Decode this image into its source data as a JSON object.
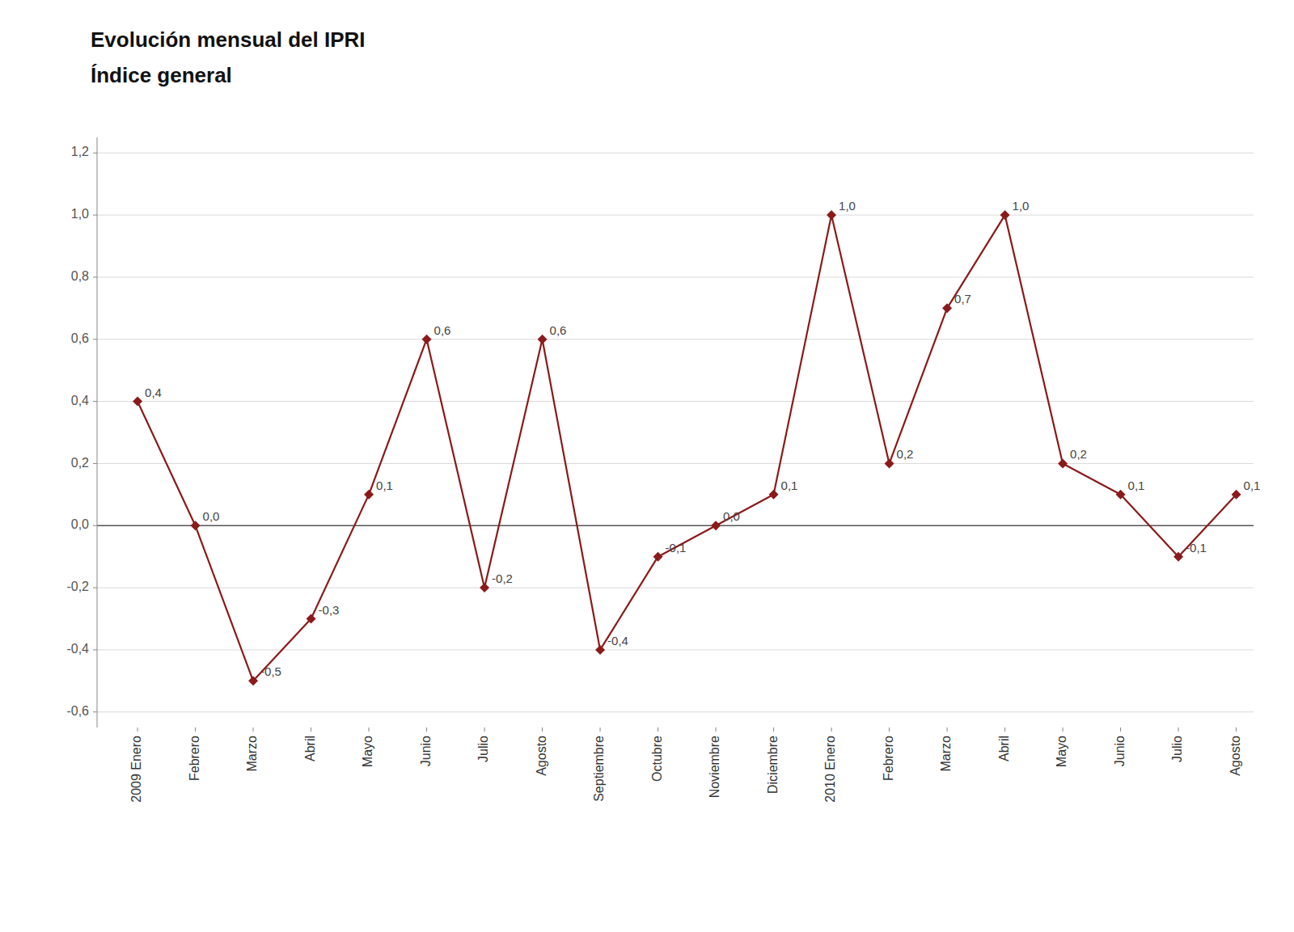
{
  "chart_data": {
    "type": "line",
    "title": "Evolución mensual del IPRI",
    "subtitle": "Índice general",
    "categories": [
      "2009 Enero",
      "Febrero",
      "Marzo",
      "Abril",
      "Mayo",
      "Junio",
      "Julio",
      "Agosto",
      "Septiembre",
      "Octubre",
      "Noviembre",
      "Diciembre",
      "2010 Enero",
      "Febrero",
      "Marzo",
      "Abril",
      "Mayo",
      "Junio",
      "Julio",
      "Agosto"
    ],
    "values": [
      0.4,
      0.0,
      -0.5,
      -0.3,
      0.1,
      0.6,
      -0.2,
      0.6,
      -0.4,
      -0.1,
      0.0,
      0.1,
      1.0,
      0.2,
      0.7,
      1.0,
      0.2,
      0.1,
      -0.1,
      0.1
    ],
    "value_labels": [
      "0,4",
      "0,0",
      "-0,5",
      "-0,3",
      "0,1",
      "0,6",
      "-0,2",
      "0,6",
      "-0,4",
      "-0,1",
      "0,0",
      "0,1",
      "1,0",
      "0,2",
      "0,7",
      "1,0",
      "0,2",
      "0,1",
      "-0,1",
      "0,1"
    ],
    "data_labels": true,
    "color": "#8B1A1A",
    "marker": "diamond",
    "line_style": "solid",
    "grid": true,
    "ylim": [
      -0.65,
      1.25
    ],
    "yticks": [
      {
        "value": -0.6,
        "label": "-0,6"
      },
      {
        "value": -0.4,
        "label": "-0,4"
      },
      {
        "value": -0.2,
        "label": "-0,2"
      },
      {
        "value": 0.0,
        "label": "0,0"
      },
      {
        "value": 0.2,
        "label": "0,2"
      },
      {
        "value": 0.4,
        "label": "0,4"
      },
      {
        "value": 0.6,
        "label": "0,6"
      },
      {
        "value": 0.8,
        "label": "0,8"
      },
      {
        "value": 1.0,
        "label": "1,0"
      },
      {
        "value": 1.2,
        "label": "1,2"
      }
    ]
  }
}
